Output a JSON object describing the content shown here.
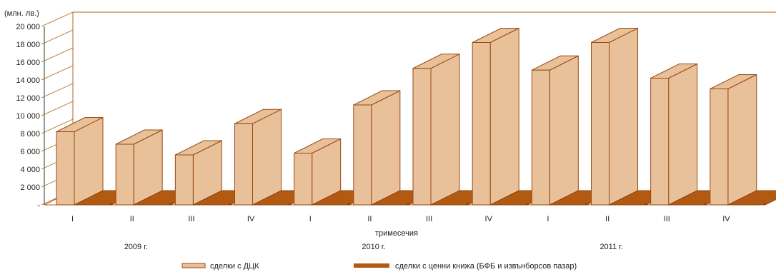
{
  "chart_data": {
    "type": "bar",
    "unit_label": "(млн. лв.)",
    "xlabel": "тримесечия",
    "categories": [
      "I",
      "II",
      "III",
      "IV",
      "I",
      "II",
      "III",
      "IV",
      "I",
      "II",
      "III",
      "IV"
    ],
    "years": [
      "2009 г.",
      "2010 г.",
      "2011 г."
    ],
    "ylim": [
      0,
      20000
    ],
    "yticks": [
      "-",
      "2 000",
      "4 000",
      "6 000",
      "8 000",
      "10 000",
      "12 000",
      "14 000",
      "16 000",
      "18 000",
      "20 000"
    ],
    "series": [
      {
        "name": "сделки с ДЦК",
        "color": "#e8c09a",
        "values": [
          8200,
          6800,
          5600,
          9100,
          5800,
          11200,
          15300,
          18200,
          15100,
          18200,
          14200,
          13000
        ]
      },
      {
        "name": "сделки с ценни книжа (БФБ и извънборсов пазар)",
        "color": "#b35a12",
        "values": [
          100,
          80,
          80,
          80,
          80,
          80,
          80,
          80,
          80,
          80,
          100,
          80
        ]
      }
    ],
    "legend_position": "bottom",
    "grid": false
  }
}
